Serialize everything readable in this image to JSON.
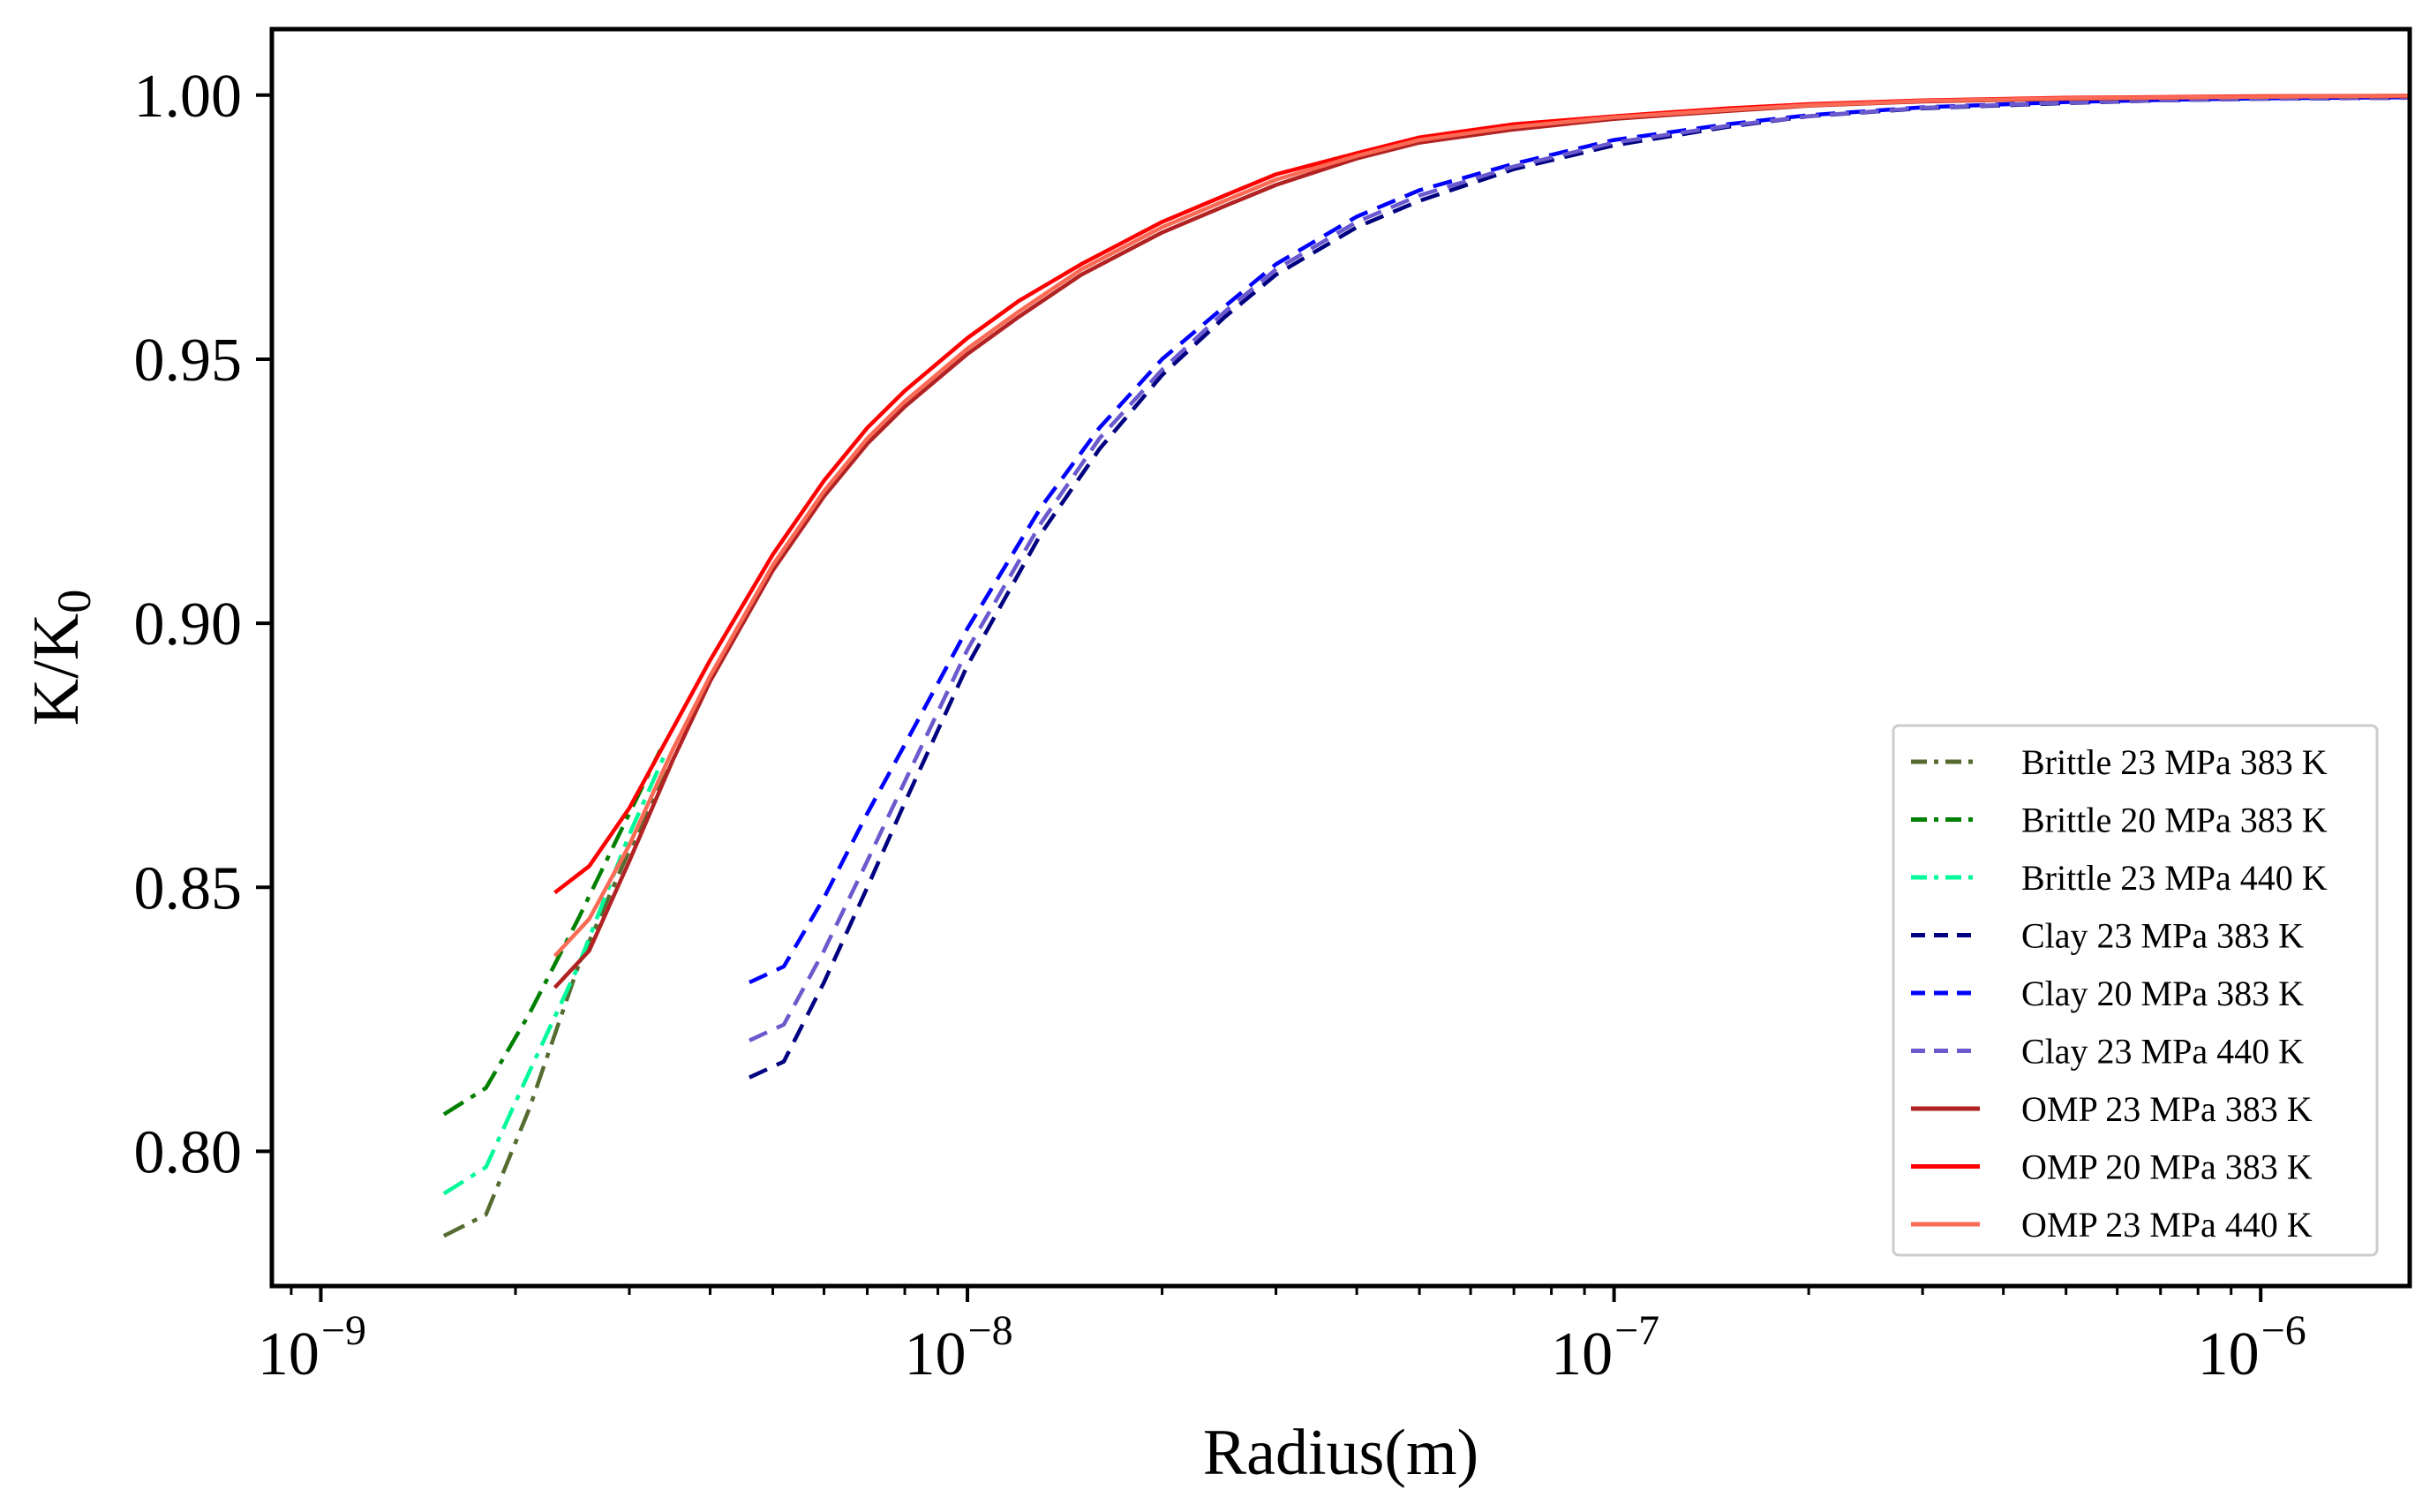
{
  "chart_data": {
    "type": "line",
    "title": "",
    "xlabel": "Radius(m)",
    "ylabel_main": "K/K",
    "ylabel_sub": "0",
    "xscale": "log",
    "xlim": [
      8.4e-10,
      1.7e-06
    ],
    "ylim": [
      0.7745,
      1.0125
    ],
    "x_ticks": [
      {
        "value": 1e-09,
        "base": "10",
        "exp": "−9"
      },
      {
        "value": 1e-08,
        "base": "10",
        "exp": "−8"
      },
      {
        "value": 1e-07,
        "base": "10",
        "exp": "−7"
      },
      {
        "value": 1e-06,
        "base": "10",
        "exp": "−6"
      }
    ],
    "y_ticks": [
      {
        "value": 0.8,
        "label": "0.80"
      },
      {
        "value": 0.85,
        "label": "0.85"
      },
      {
        "value": 0.9,
        "label": "0.90"
      },
      {
        "value": 0.95,
        "label": "0.95"
      },
      {
        "value": 1.0,
        "label": "1.00"
      }
    ],
    "legend_position": "lower-right",
    "grid": false,
    "series": [
      {
        "name": "Brittle 23 MPa 383 K",
        "color": "#556B2F",
        "dash": "dashdot",
        "x": [
          1.55e-09,
          1.8e-09,
          2.1e-09,
          2.5e-09,
          3e-09,
          3.5e-09
        ],
        "y": [
          0.784,
          0.788,
          0.808,
          0.835,
          0.857,
          0.874
        ]
      },
      {
        "name": "Brittle 20 MPa 383 K",
        "color": "#008000",
        "dash": "dashdot",
        "x": [
          1.55e-09,
          1.8e-09,
          2.1e-09,
          2.5e-09,
          3e-09,
          3.35e-09
        ],
        "y": [
          0.807,
          0.812,
          0.826,
          0.844,
          0.864,
          0.876
        ]
      },
      {
        "name": "Brittle 23 MPa 440 K",
        "color": "#00FA9A",
        "dash": "dashdot",
        "x": [
          1.55e-09,
          1.8e-09,
          2.1e-09,
          2.5e-09,
          3e-09,
          3.4e-09
        ],
        "y": [
          0.792,
          0.797,
          0.815,
          0.835,
          0.86,
          0.875
        ]
      },
      {
        "name": "Clay 23 MPa 383 K",
        "color": "#000080",
        "dash": "dashed",
        "x": [
          4.6e-09,
          5.2e-09,
          6e-09,
          7e-09,
          8e-09,
          1e-08,
          1.3e-08,
          1.6e-08,
          2e-08,
          2.5e-08,
          3e-08,
          4e-08,
          5e-08,
          7e-08,
          1e-07,
          1.5e-07,
          2e-07,
          3e-07,
          5e-07,
          7e-07,
          1e-06,
          1.7e-06
        ],
        "y": [
          0.814,
          0.817,
          0.832,
          0.85,
          0.866,
          0.892,
          0.917,
          0.933,
          0.947,
          0.958,
          0.966,
          0.975,
          0.98,
          0.986,
          0.9905,
          0.994,
          0.996,
          0.9975,
          0.9985,
          0.999,
          0.9993,
          0.9995
        ]
      },
      {
        "name": "Clay 20 MPa 383 K",
        "color": "#0000FF",
        "dash": "dashed",
        "x": [
          4.6e-09,
          5.2e-09,
          6e-09,
          7e-09,
          8e-09,
          1e-08,
          1.3e-08,
          1.6e-08,
          2e-08,
          2.5e-08,
          3e-08,
          4e-08,
          5e-08,
          7e-08,
          1e-07,
          1.5e-07,
          2e-07,
          3e-07,
          5e-07,
          7e-07,
          1e-06,
          1.7e-06
        ],
        "y": [
          0.832,
          0.835,
          0.848,
          0.864,
          0.877,
          0.899,
          0.922,
          0.937,
          0.95,
          0.96,
          0.968,
          0.977,
          0.982,
          0.987,
          0.9915,
          0.9945,
          0.9962,
          0.9977,
          0.9987,
          0.9991,
          0.9994,
          0.9996
        ]
      },
      {
        "name": "Clay 23 MPa 440 K",
        "color": "#6A5ACD",
        "dash": "dashed",
        "x": [
          4.6e-09,
          5.2e-09,
          6e-09,
          7e-09,
          8e-09,
          1e-08,
          1.3e-08,
          1.6e-08,
          2e-08,
          2.5e-08,
          3e-08,
          4e-08,
          5e-08,
          7e-08,
          1e-07,
          1.5e-07,
          2e-07,
          3e-07,
          5e-07,
          7e-07,
          1e-06,
          1.7e-06
        ],
        "y": [
          0.821,
          0.824,
          0.838,
          0.855,
          0.87,
          0.895,
          0.919,
          0.935,
          0.948,
          0.959,
          0.967,
          0.976,
          0.981,
          0.9865,
          0.991,
          0.9942,
          0.996,
          0.9976,
          0.9986,
          0.999,
          0.9993,
          0.9995
        ]
      },
      {
        "name": "OMP 23 MPa 383 K",
        "color": "#B22222",
        "dash": "solid",
        "x": [
          2.3e-09,
          2.6e-09,
          3e-09,
          3.5e-09,
          4e-09,
          5e-09,
          6e-09,
          7e-09,
          8e-09,
          1e-08,
          1.2e-08,
          1.5e-08,
          2e-08,
          2.5e-08,
          3e-08,
          4e-08,
          5e-08,
          7e-08,
          1e-07,
          1.5e-07,
          2e-07,
          3e-07,
          5e-07,
          1e-06,
          1.7e-06
        ],
        "y": [
          0.831,
          0.838,
          0.855,
          0.874,
          0.889,
          0.91,
          0.924,
          0.934,
          0.941,
          0.951,
          0.958,
          0.966,
          0.974,
          0.979,
          0.983,
          0.988,
          0.991,
          0.9935,
          0.9955,
          0.997,
          0.998,
          0.9988,
          0.9993,
          0.9997,
          0.9998
        ]
      },
      {
        "name": "OMP 20 MPa 383 K",
        "color": "#FF0000",
        "dash": "solid",
        "x": [
          2.3e-09,
          2.6e-09,
          3e-09,
          3.5e-09,
          4e-09,
          5e-09,
          6e-09,
          7e-09,
          8e-09,
          1e-08,
          1.2e-08,
          1.5e-08,
          2e-08,
          2.5e-08,
          3e-08,
          4e-08,
          5e-08,
          7e-08,
          1e-07,
          1.5e-07,
          2e-07,
          3e-07,
          5e-07,
          1e-06,
          1.7e-06
        ],
        "y": [
          0.849,
          0.854,
          0.865,
          0.88,
          0.893,
          0.913,
          0.927,
          0.937,
          0.944,
          0.954,
          0.961,
          0.968,
          0.976,
          0.981,
          0.985,
          0.989,
          0.992,
          0.9945,
          0.996,
          0.9975,
          0.9983,
          0.999,
          0.9995,
          0.9998,
          0.9999
        ]
      },
      {
        "name": "OMP 23 MPa 440 K",
        "color": "#FA6A55",
        "dash": "solid",
        "x": [
          2.3e-09,
          2.6e-09,
          3e-09,
          3.5e-09,
          4e-09,
          5e-09,
          6e-09,
          7e-09,
          8e-09,
          1e-08,
          1.2e-08,
          1.5e-08,
          2e-08,
          2.5e-08,
          3e-08,
          4e-08,
          5e-08,
          7e-08,
          1e-07,
          1.5e-07,
          2e-07,
          3e-07,
          5e-07,
          1e-06,
          1.7e-06
        ],
        "y": [
          0.837,
          0.844,
          0.858,
          0.876,
          0.89,
          0.911,
          0.925,
          0.935,
          0.942,
          0.952,
          0.959,
          0.967,
          0.975,
          0.98,
          0.984,
          0.9885,
          0.9915,
          0.994,
          0.9958,
          0.9972,
          0.9981,
          0.9989,
          0.9994,
          0.9997,
          0.9999
        ]
      }
    ]
  },
  "colors": {
    "background": "#ffffff",
    "axes": "#000000",
    "legend_border": "#cccccc"
  }
}
